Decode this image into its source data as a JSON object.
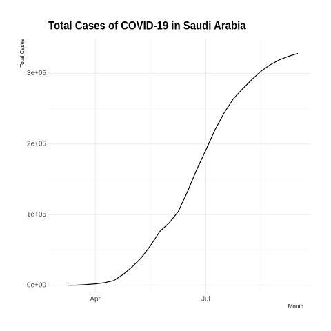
{
  "chart_data": {
    "type": "line",
    "title": "Total Cases of COVID-19 in Saudi Arabia",
    "x_label": "Month",
    "y_label": "Total Cases",
    "categories": [
      null,
      null,
      null,
      "Apr",
      null,
      null,
      null,
      null,
      null,
      null,
      null,
      null,
      null,
      null,
      null,
      "Jul",
      null,
      null,
      null,
      null,
      null,
      null,
      null,
      null,
      null,
      null
    ],
    "series": [
      {
        "name": "Total Cases",
        "color": "#000000",
        "values": [
          0,
          200,
          1000,
          2000,
          3600,
          6500,
          15000,
          26000,
          39000,
          56000,
          76000,
          88000,
          104000,
          132000,
          163000,
          191000,
          220000,
          244000,
          264000,
          278000,
          291000,
          303000,
          312000,
          319000,
          324000,
          328000
        ]
      }
    ],
    "ylim": [
      -12000,
      348000
    ],
    "yticks": [
      {
        "value": 0,
        "label": "0e+00"
      },
      {
        "value": 100000,
        "label": "1e+05"
      },
      {
        "value": 200000,
        "label": "2e+05"
      },
      {
        "value": 300000,
        "label": "3e+05"
      }
    ],
    "grid": true
  }
}
